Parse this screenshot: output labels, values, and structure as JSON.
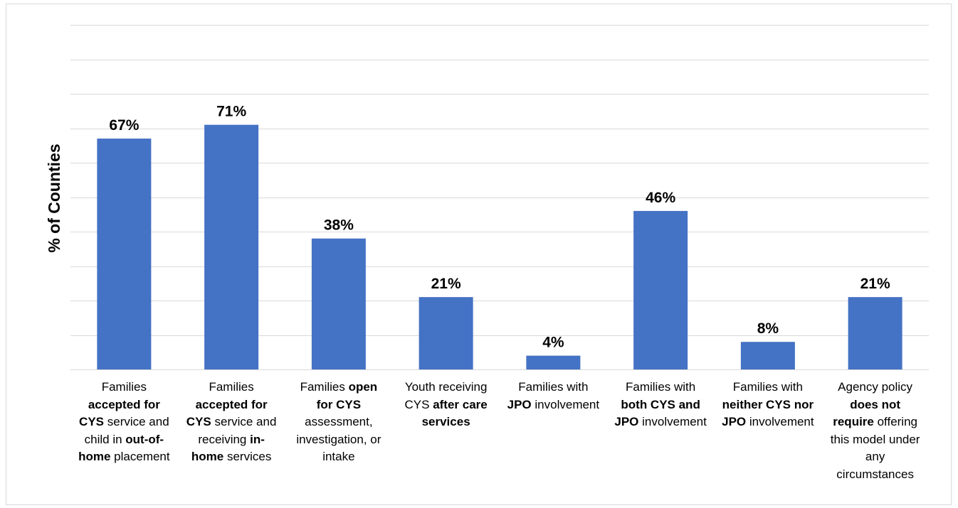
{
  "chart_data": {
    "type": "bar",
    "ylabel": "% of Counties",
    "ylim": [
      0,
      100
    ],
    "grid": true,
    "gridline_step": 10,
    "bar_color": "#4472c4",
    "categories": [
      "Families accepted for CYS service and child in out-of-home placement",
      "Families accepted for CYS service and receiving in-home services",
      "Families open for CYS assessment, investigation, or intake",
      "Youth receiving CYS after care services",
      "Families with JPO involvement",
      "Families with both CYS and JPO involvement",
      "Families with neither CYS nor JPO involvement",
      "Agency policy does not require offering this model under any circumstances"
    ],
    "category_segments": [
      [
        {
          "t": "Families "
        },
        {
          "t": "accepted for CYS",
          "b": true
        },
        {
          "t": " service and child in "
        },
        {
          "t": "out-of-home",
          "b": true
        },
        {
          "t": " placement"
        }
      ],
      [
        {
          "t": "Families "
        },
        {
          "t": "accepted for CYS",
          "b": true
        },
        {
          "t": " service and receiving "
        },
        {
          "t": "in-home",
          "b": true
        },
        {
          "t": " services"
        }
      ],
      [
        {
          "t": "Families "
        },
        {
          "t": "open for CYS",
          "b": true
        },
        {
          "t": " assessment, investigation, or intake"
        }
      ],
      [
        {
          "t": "Youth receiving CYS "
        },
        {
          "t": "after care services",
          "b": true
        }
      ],
      [
        {
          "t": "Families with "
        },
        {
          "t": "JPO",
          "b": true
        },
        {
          "t": " involvement"
        }
      ],
      [
        {
          "t": "Families with "
        },
        {
          "t": "both CYS and JPO",
          "b": true
        },
        {
          "t": " involvement"
        }
      ],
      [
        {
          "t": "Families with "
        },
        {
          "t": "neither CYS nor JPO",
          "b": true
        },
        {
          "t": " involvement"
        }
      ],
      [
        {
          "t": "Agency policy "
        },
        {
          "t": "does not require",
          "b": true
        },
        {
          "t": " offering this model under any circumstances"
        }
      ]
    ],
    "values": [
      67,
      71,
      38,
      21,
      4,
      46,
      8,
      21
    ],
    "data_labels": [
      "67%",
      "71%",
      "38%",
      "21%",
      "4%",
      "46%",
      "8%",
      "21%"
    ]
  }
}
